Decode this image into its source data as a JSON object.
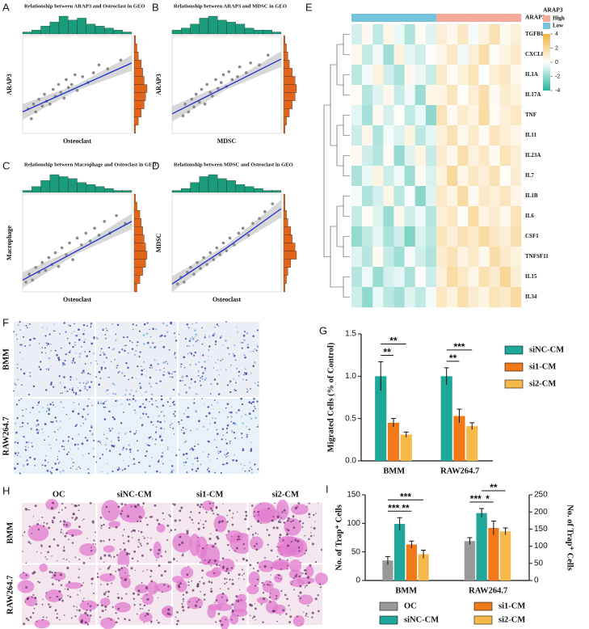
{
  "chart_data": [
    {
      "type": "scatter",
      "panel": "A",
      "title": "Relationship between ARAP3 and Osteoclast in GEO",
      "xlabel": "Osteoclast",
      "ylabel": "ARAP3",
      "x": [
        0.05,
        0.08,
        0.1,
        0.12,
        0.15,
        0.18,
        0.2,
        0.22,
        0.25,
        0.28,
        0.3,
        0.33,
        0.35,
        0.38,
        0.4,
        0.42,
        0.45,
        0.48,
        0.5,
        0.55,
        0.6,
        0.65,
        0.7,
        0.78,
        0.9
      ],
      "y": [
        0.25,
        0.15,
        0.3,
        0.22,
        0.35,
        0.28,
        0.4,
        0.33,
        0.3,
        0.45,
        0.38,
        0.5,
        0.42,
        0.36,
        0.55,
        0.47,
        0.5,
        0.6,
        0.44,
        0.58,
        0.52,
        0.62,
        0.7,
        0.66,
        0.75
      ],
      "xlim": [
        0,
        1
      ],
      "ylim": [
        0,
        1
      ],
      "fit": {
        "x": [
          0,
          0.5,
          1
        ],
        "y": [
          0.22,
          0.47,
          0.72
        ],
        "lower": [
          0.14,
          0.44,
          0.64
        ],
        "upper": [
          0.3,
          0.5,
          0.8
        ],
        "color": "#1f2fd0"
      },
      "marginal_x": {
        "values": [
          1,
          2,
          4,
          6,
          9,
          7,
          8,
          5,
          4,
          3,
          2,
          1
        ],
        "color": "#1a9c7a"
      },
      "marginal_y": {
        "values": [
          1,
          3,
          5,
          7,
          8,
          9,
          7,
          6,
          5,
          3,
          2,
          1
        ],
        "color": "#e0651a"
      }
    },
    {
      "type": "scatter",
      "panel": "B",
      "title": "Relationship between ARAP3 and MDSC in GEO",
      "xlabel": "MDSC",
      "ylabel": "ARAP3",
      "x": [
        0.1,
        0.12,
        0.15,
        0.18,
        0.2,
        0.22,
        0.25,
        0.27,
        0.3,
        0.32,
        0.35,
        0.37,
        0.4,
        0.42,
        0.45,
        0.47,
        0.5,
        0.52,
        0.55,
        0.6,
        0.62,
        0.68,
        0.72,
        0.8,
        0.88
      ],
      "y": [
        0.18,
        0.3,
        0.22,
        0.35,
        0.27,
        0.4,
        0.32,
        0.45,
        0.3,
        0.5,
        0.42,
        0.38,
        0.55,
        0.46,
        0.52,
        0.6,
        0.48,
        0.63,
        0.55,
        0.58,
        0.68,
        0.62,
        0.72,
        0.7,
        0.8
      ],
      "xlim": [
        0,
        1
      ],
      "ylim": [
        0,
        1
      ],
      "fit": {
        "x": [
          0,
          0.5,
          1
        ],
        "y": [
          0.2,
          0.48,
          0.76
        ],
        "lower": [
          0.12,
          0.45,
          0.68
        ],
        "upper": [
          0.28,
          0.51,
          0.84
        ],
        "color": "#1f2fd0"
      },
      "marginal_x": {
        "values": [
          2,
          3,
          5,
          8,
          9,
          7,
          6,
          5,
          3,
          2,
          2,
          1
        ],
        "color": "#1a9c7a"
      },
      "marginal_y": {
        "values": [
          1,
          2,
          4,
          6,
          8,
          9,
          8,
          6,
          4,
          3,
          2,
          1
        ],
        "color": "#e0651a"
      }
    },
    {
      "type": "scatter",
      "panel": "C",
      "title": "Relationship between Macrophage and Osteoclast in GEO",
      "xlabel": "Osteoclast",
      "ylabel": "Macrophage",
      "x": [
        0.03,
        0.06,
        0.09,
        0.12,
        0.15,
        0.18,
        0.21,
        0.24,
        0.27,
        0.3,
        0.33,
        0.36,
        0.4,
        0.43,
        0.46,
        0.5,
        0.54,
        0.58,
        0.62,
        0.66,
        0.7,
        0.75,
        0.8,
        0.86,
        0.94
      ],
      "y": [
        0.1,
        0.18,
        0.12,
        0.25,
        0.2,
        0.3,
        0.22,
        0.35,
        0.28,
        0.4,
        0.26,
        0.45,
        0.38,
        0.5,
        0.33,
        0.55,
        0.48,
        0.6,
        0.52,
        0.65,
        0.58,
        0.72,
        0.6,
        0.78,
        0.7
      ],
      "xlim": [
        0,
        1
      ],
      "ylim": [
        0,
        1
      ],
      "fit": {
        "x": [
          0,
          0.5,
          1
        ],
        "y": [
          0.12,
          0.42,
          0.72
        ],
        "lower": [
          0.04,
          0.39,
          0.64
        ],
        "upper": [
          0.2,
          0.45,
          0.8
        ],
        "color": "#1f2fd0"
      },
      "marginal_x": {
        "values": [
          1,
          3,
          6,
          9,
          8,
          7,
          5,
          4,
          3,
          2,
          1,
          1
        ],
        "color": "#1a9c7a"
      },
      "marginal_y": {
        "values": [
          2,
          4,
          6,
          8,
          9,
          8,
          7,
          6,
          5,
          4,
          2,
          1
        ],
        "color": "#e0651a"
      }
    },
    {
      "type": "scatter",
      "panel": "D",
      "title": "Relationship between MDSC and Osteoclast in GEO",
      "xlabel": "Osteoclast",
      "ylabel": "MDSC",
      "x": [
        0.05,
        0.08,
        0.11,
        0.14,
        0.17,
        0.2,
        0.23,
        0.26,
        0.29,
        0.32,
        0.35,
        0.38,
        0.41,
        0.44,
        0.47,
        0.5,
        0.53,
        0.57,
        0.61,
        0.65,
        0.7,
        0.74,
        0.8,
        0.85,
        0.92
      ],
      "y": [
        0.08,
        0.15,
        0.1,
        0.2,
        0.25,
        0.18,
        0.3,
        0.24,
        0.35,
        0.28,
        0.4,
        0.33,
        0.45,
        0.38,
        0.5,
        0.42,
        0.55,
        0.48,
        0.6,
        0.65,
        0.58,
        0.7,
        0.75,
        0.82,
        0.9
      ],
      "xlim": [
        0,
        1
      ],
      "ylim": [
        0,
        1
      ],
      "fit": {
        "x": [
          0,
          0.5,
          1
        ],
        "y": [
          0.08,
          0.45,
          0.85
        ],
        "lower": [
          0.0,
          0.42,
          0.76
        ],
        "upper": [
          0.16,
          0.48,
          0.94
        ],
        "color": "#1f2fd0"
      },
      "marginal_x": {
        "values": [
          1,
          2,
          5,
          8,
          9,
          7,
          6,
          4,
          3,
          2,
          1,
          1
        ],
        "color": "#1a9c7a"
      },
      "marginal_y": {
        "values": [
          1,
          2,
          3,
          5,
          9,
          8,
          6,
          5,
          3,
          2,
          1,
          1
        ],
        "color": "#e0651a"
      }
    },
    {
      "type": "heatmap",
      "panel": "E",
      "rows": [
        "TGFB1",
        "CXCL8",
        "IL1A",
        "IL17A",
        "TNF",
        "IL11",
        "IL23A",
        "IL7",
        "IL1B",
        "IL6",
        "CSF1",
        "TNFSF11",
        "IL15",
        "IL34"
      ],
      "annotation": {
        "name": "ARAP3",
        "title": "ARAP3",
        "groups": [
          "Low",
          "Low",
          "Low",
          "Low",
          "Low",
          "Low",
          "Low",
          "Low",
          "High",
          "High",
          "High",
          "High",
          "High",
          "High",
          "High",
          "High"
        ],
        "legend": [
          {
            "name": "High",
            "color": "#f4a99a"
          },
          {
            "name": "Low",
            "color": "#74c5dc"
          }
        ]
      },
      "values": [
        [
          -0.8,
          0.3,
          -1.2,
          0.5,
          -0.4,
          -1.5,
          0.2,
          -0.6,
          0.9,
          0.4,
          1.3,
          -0.2,
          0.7,
          1.6,
          0.3,
          0.8
        ],
        [
          0.4,
          -1.1,
          -0.3,
          -1.8,
          0.6,
          -0.5,
          -0.9,
          0.1,
          0.5,
          1.2,
          -0.3,
          0.9,
          1.8,
          0.2,
          0.6,
          1.1
        ],
        [
          -1.3,
          -0.2,
          0.7,
          -0.9,
          -1.6,
          0.3,
          -0.4,
          -1.0,
          1.1,
          0.2,
          0.8,
          1.5,
          -0.1,
          0.9,
          1.3,
          0.4
        ],
        [
          0.2,
          -1.4,
          -0.6,
          0.4,
          -1.1,
          -0.3,
          -1.9,
          0.5,
          0.6,
          1.4,
          0.1,
          0.9,
          1.7,
          0.3,
          1.0,
          0.7
        ],
        [
          -0.5,
          -1.7,
          0.3,
          -0.8,
          0.1,
          -1.2,
          -0.4,
          -2.1,
          1.5,
          0.3,
          1.0,
          0.6,
          1.9,
          0.2,
          0.8,
          1.2
        ],
        [
          -1.0,
          0.4,
          -1.5,
          -0.2,
          -0.7,
          0.6,
          -1.3,
          -0.5,
          0.8,
          1.6,
          0.4,
          1.1,
          0.2,
          1.4,
          0.9,
          0.5
        ],
        [
          0.3,
          -0.9,
          -1.4,
          0.2,
          -2.0,
          -0.6,
          0.5,
          -1.1,
          1.0,
          0.4,
          1.7,
          0.7,
          1.2,
          0.3,
          1.5,
          0.9
        ],
        [
          -1.6,
          -0.4,
          0.6,
          -1.0,
          -0.3,
          -1.8,
          0.2,
          -0.7,
          0.7,
          2.1,
          0.5,
          1.3,
          0.8,
          1.6,
          0.1,
          1.0
        ],
        [
          -0.2,
          -1.5,
          -0.8,
          0.5,
          -1.3,
          -0.1,
          -2.2,
          -0.6,
          1.2,
          0.6,
          1.9,
          0.3,
          1.1,
          0.8,
          1.4,
          0.5
        ],
        [
          -1.1,
          0.2,
          -0.6,
          -1.9,
          0.4,
          -0.9,
          -0.3,
          -1.4,
          0.9,
          1.3,
          0.2,
          1.8,
          0.6,
          1.0,
          0.4,
          1.5
        ],
        [
          -2.0,
          -1.2,
          -0.5,
          -1.6,
          -0.9,
          -2.4,
          -0.7,
          -1.3,
          1.4,
          0.8,
          1.6,
          1.1,
          2.0,
          1.3,
          0.9,
          1.7
        ],
        [
          -0.6,
          -1.4,
          0.3,
          -1.1,
          -1.8,
          -0.2,
          -0.9,
          -1.5,
          1.0,
          1.5,
          0.6,
          1.2,
          0.4,
          1.8,
          1.1,
          0.7
        ],
        [
          -1.4,
          -0.3,
          -1.9,
          -0.8,
          -0.5,
          -1.6,
          0.1,
          -1.0,
          0.8,
          1.9,
          1.2,
          0.5,
          1.6,
          1.0,
          2.2,
          0.9
        ],
        [
          -0.9,
          -2.1,
          -0.4,
          -1.3,
          -1.7,
          -0.6,
          -1.2,
          -0.2,
          1.3,
          0.7,
          1.7,
          1.0,
          0.6,
          1.5,
          1.1,
          2.0
        ]
      ],
      "colorbar": {
        "lim": [
          -4,
          4
        ],
        "ticks": [
          4,
          2,
          0,
          -2,
          -4
        ],
        "colors": [
          "#2ab5a0",
          "#ffffff",
          "#f2b440"
        ]
      }
    },
    {
      "type": "bar",
      "panel": "G",
      "categories": [
        "BMM",
        "RAW264.7"
      ],
      "ylabel": "Migrated Cells (% of Control)",
      "series": [
        {
          "name": "siNC-CM",
          "color": "#1fa89a",
          "values": [
            1.0,
            1.0
          ],
          "errors": [
            0.17,
            0.1
          ]
        },
        {
          "name": "si1-CM",
          "color": "#f07a1a",
          "values": [
            0.45,
            0.53
          ],
          "errors": [
            0.05,
            0.08
          ]
        },
        {
          "name": "si2-CM",
          "color": "#f7b84a",
          "values": [
            0.31,
            0.41
          ],
          "errors": [
            0.03,
            0.04
          ]
        }
      ],
      "ylim": [
        0,
        1.5
      ],
      "yticks": [
        {
          "value": 0,
          "label": "0.0"
        },
        0.5,
        {
          "value": 1,
          "label": "1.0"
        },
        1.5
      ],
      "legend": "right",
      "comparisons": [
        {
          "category": "BMM",
          "from": "siNC-CM",
          "to": "si1-CM",
          "label": "**"
        },
        {
          "category": "BMM",
          "from": "siNC-CM",
          "to": "si2-CM",
          "label": "**"
        },
        {
          "category": "RAW264.7",
          "from": "siNC-CM",
          "to": "si1-CM",
          "label": "**"
        },
        {
          "category": "RAW264.7",
          "from": "siNC-CM",
          "to": "si2-CM",
          "label": "***"
        }
      ]
    },
    {
      "type": "bar",
      "panel": "I",
      "categories": [
        "BMM",
        "RAW264.7"
      ],
      "ylabel": "No. of Trap⁺ Cells",
      "y2label": "No. of Trap⁺ Cells",
      "series": [
        {
          "name": "OC",
          "color": "#999999",
          "values": [
            35,
            69
          ],
          "errors": [
            7,
            6
          ]
        },
        {
          "name": "siNC-CM",
          "color": "#1fa89a",
          "values": [
            99,
            118
          ],
          "errors": [
            11,
            8
          ]
        },
        {
          "name": "si1-CM",
          "color": "#f07a1a",
          "values": [
            63,
            92
          ],
          "errors": [
            6,
            12
          ]
        },
        {
          "name": "si2-CM",
          "color": "#f7b84a",
          "values": [
            46,
            86
          ],
          "errors": [
            7,
            6
          ]
        }
      ],
      "ylim": [
        0,
        150
      ],
      "yticks": [
        0,
        50,
        100,
        150
      ],
      "y2lim": [
        0,
        250
      ],
      "y2ticks": [
        0,
        50,
        100,
        150,
        200,
        250
      ],
      "legend": "bottom",
      "comparisons": [
        {
          "category": "BMM",
          "from": "OC",
          "to": "siNC-CM",
          "label": "***"
        },
        {
          "category": "BMM",
          "from": "siNC-CM",
          "to": "si1-CM",
          "label": "**"
        },
        {
          "category": "BMM",
          "from": "OC",
          "to": "si2-CM",
          "label": "***"
        },
        {
          "category": "RAW264.7",
          "from": "OC",
          "to": "siNC-CM",
          "label": "***"
        },
        {
          "category": "RAW264.7",
          "from": "siNC-CM",
          "to": "si1-CM",
          "label": "*"
        },
        {
          "category": "RAW264.7",
          "from": "siNC-CM",
          "to": "si2-CM",
          "label": "**"
        }
      ]
    }
  ],
  "image_panels": [
    {
      "panel": "F",
      "row_labels": [
        "BMM",
        "RAW264.7"
      ]
    },
    {
      "panel": "H",
      "row_labels": [
        "BMM",
        "RAW264.7"
      ],
      "column_labels": [
        "OC",
        "siNC-CM",
        "si1-CM",
        "si2-CM"
      ]
    }
  ]
}
